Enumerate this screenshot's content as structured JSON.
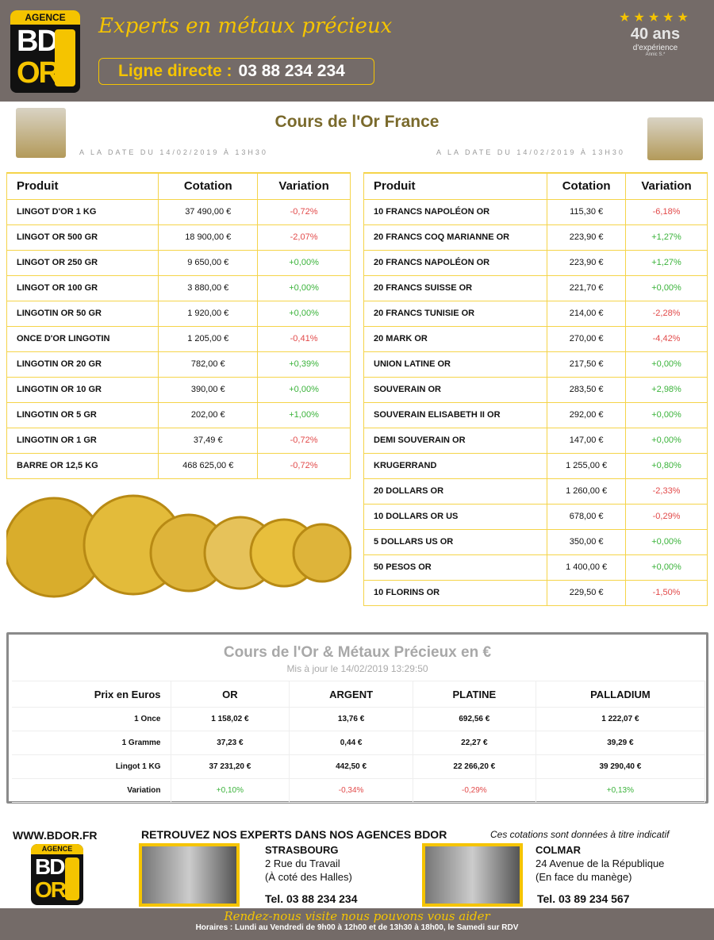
{
  "header": {
    "logo_text": "AGENCE BD OR",
    "slogan": "Experts en métaux précieux",
    "phone_label": "Ligne directe :",
    "phone_number": "03 88 234 234",
    "badge": {
      "years": "40 ans",
      "experience": "d'expérience",
      "note": "Annic S.*"
    }
  },
  "page_title": "Cours de l'Or France",
  "date_left": "A LA DATE DU 14/02/2019 À 13H30",
  "date_right": "A LA DATE DU 14/02/2019 À 13H30",
  "columns": [
    "Produit",
    "Cotation",
    "Variation"
  ],
  "left_table": [
    [
      "LINGOT D'OR 1 KG",
      "37 490,00 €",
      "-0,72%"
    ],
    [
      "LINGOT OR 500 GR",
      "18 900,00 €",
      "-2,07%"
    ],
    [
      "LINGOT OR 250 GR",
      "9 650,00 €",
      "+0,00%"
    ],
    [
      "LINGOT OR 100 GR",
      "3 880,00 €",
      "+0,00%"
    ],
    [
      "LINGOTIN OR 50 GR",
      "1 920,00 €",
      "+0,00%"
    ],
    [
      "ONCE D'OR LINGOTIN",
      "1 205,00 €",
      "-0,41%"
    ],
    [
      "LINGOTIN OR 20 GR",
      "782,00 €",
      "+0,39%"
    ],
    [
      "LINGOTIN OR 10 GR",
      "390,00 €",
      "+0,00%"
    ],
    [
      "LINGOTIN OR 5 GR",
      "202,00 €",
      "+1,00%"
    ],
    [
      "LINGOTIN OR 1 GR",
      "37,49 €",
      "-0,72%"
    ],
    [
      "BARRE OR 12,5 KG",
      "468 625,00 €",
      "-0,72%"
    ]
  ],
  "right_table": [
    [
      "10 FRANCS NAPOLÉON OR",
      "115,30 €",
      "-6,18%"
    ],
    [
      "20 FRANCS COQ MARIANNE OR",
      "223,90 €",
      "+1,27%"
    ],
    [
      "20 FRANCS NAPOLÉON OR",
      "223,90 €",
      "+1,27%"
    ],
    [
      "20 FRANCS SUISSE OR",
      "221,70 €",
      "+0,00%"
    ],
    [
      "20 FRANCS TUNISIE OR",
      "214,00 €",
      "-2,28%"
    ],
    [
      "20 MARK OR",
      "270,00 €",
      "-4,42%"
    ],
    [
      "UNION LATINE OR",
      "217,50 €",
      "+0,00%"
    ],
    [
      "SOUVERAIN OR",
      "283,50 €",
      "+2,98%"
    ],
    [
      "SOUVERAIN ELISABETH II OR",
      "292,00 €",
      "+0,00%"
    ],
    [
      "DEMI SOUVERAIN OR",
      "147,00 €",
      "+0,00%"
    ],
    [
      "KRUGERRAND",
      "1 255,00 €",
      "+0,80%"
    ],
    [
      "20 DOLLARS OR",
      "1 260,00 €",
      "-2,33%"
    ],
    [
      "10 DOLLARS OR US",
      "678,00 €",
      "-0,29%"
    ],
    [
      "5 DOLLARS US OR",
      "350,00 €",
      "+0,00%"
    ],
    [
      "50 PESOS OR",
      "1 400,00 €",
      "+0,00%"
    ],
    [
      "10 FLORINS OR",
      "229,50 €",
      "-1,50%"
    ]
  ],
  "metals": {
    "title": "Cours de l'Or & Métaux Précieux en €",
    "subtitle": "Mis à jour le 14/02/2019 13:29:50",
    "headers": [
      "Prix en Euros",
      "OR",
      "ARGENT",
      "PLATINE",
      "PALLADIUM"
    ],
    "rows": [
      [
        "1 Once",
        "1 158,02 €",
        "13,76 €",
        "692,56 €",
        "1 222,07 €"
      ],
      [
        "1 Gramme",
        "37,23 €",
        "0,44 €",
        "22,27 €",
        "39,29 €"
      ],
      [
        "Lingot 1 KG",
        "37 231,20 €",
        "442,50 €",
        "22 266,20 €",
        "39 290,40 €"
      ],
      [
        "Variation",
        "+0,10%",
        "-0,34%",
        "-0,29%",
        "+0,13%"
      ]
    ]
  },
  "colors": {
    "positive": "#3bb33b",
    "negative": "#e24a4a",
    "accent": "#f5c400",
    "header_bg": "#746b68"
  },
  "footer": {
    "website": "WWW.BDOR.FR",
    "headline": "RETROUVEZ NOS EXPERTS DANS NOS AGENCES BDOR",
    "disclaimer": "Ces cotations sont données à titre indicatif",
    "agencies": [
      {
        "city": "STRASBOURG",
        "line1": "2 Rue du Travail",
        "line2": "(À coté des Halles)",
        "tel": "Tel. 03 88 234 234"
      },
      {
        "city": "COLMAR",
        "line1": "24 Avenue de la République",
        "line2": "(En face du manège)",
        "tel": "Tel. 03 89 234 567"
      }
    ],
    "tagline": "Rendez-nous visite nous pouvons vous aider",
    "hours": "Horaires : Lundi au Vendredi de 9h00 à 12h00 et de 13h30 à 18h00, le Samedi sur RDV"
  }
}
